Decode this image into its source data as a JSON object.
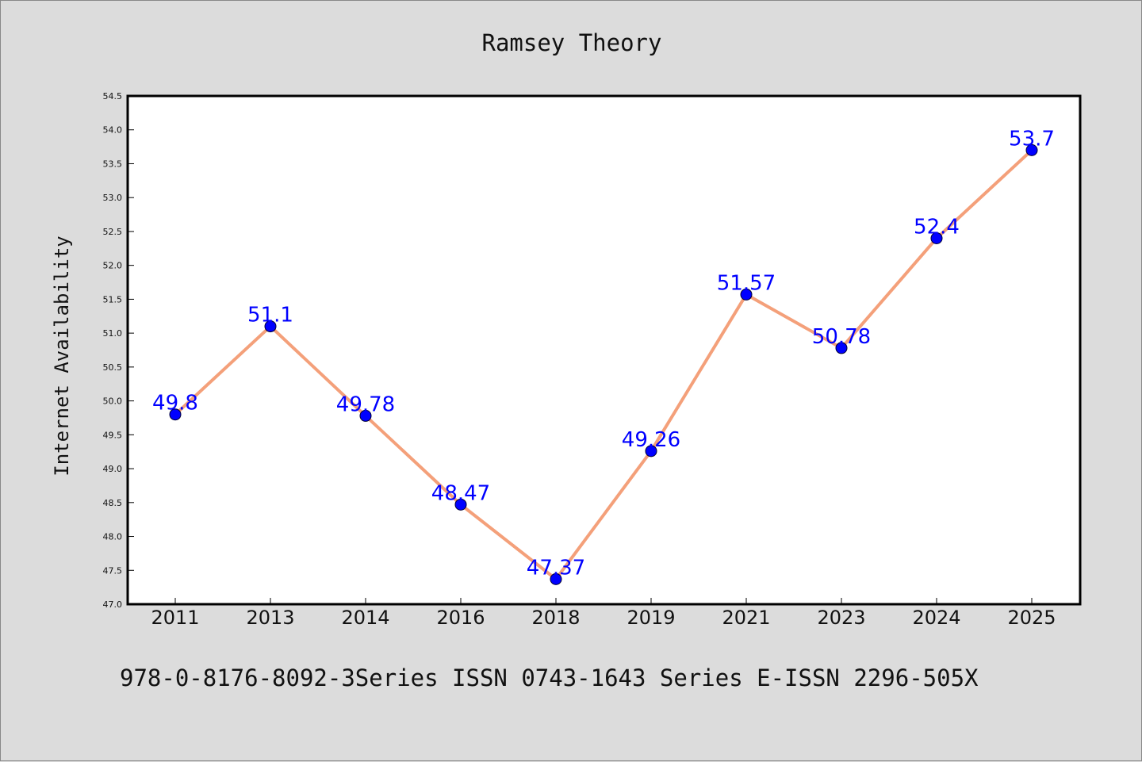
{
  "footer_text": "978-0-8176-8092-3Series ISSN 0743-1643 Series E-ISSN 2296-505X",
  "chart_data": {
    "type": "line",
    "title": "Ramsey Theory",
    "xlabel": "",
    "ylabel": "Internet Availability",
    "categories": [
      "2011",
      "2013",
      "2014",
      "2016",
      "2018",
      "2019",
      "2021",
      "2023",
      "2024",
      "2025"
    ],
    "series": [
      {
        "values": [
          49.8,
          51.1,
          49.78,
          48.47,
          47.37,
          49.26,
          51.57,
          50.78,
          52.4,
          53.7
        ],
        "data_labels": [
          "49.8",
          "51.1",
          "49.78",
          "48.47",
          "47.37",
          "49.26",
          "51.57",
          "50.78",
          "52.4",
          "53.7"
        ]
      }
    ],
    "ylim": [
      47.0,
      54.5
    ],
    "yticks": [
      "47.0",
      "47.5",
      "48.0",
      "48.5",
      "49.0",
      "49.5",
      "50.0",
      "50.5",
      "51.0",
      "51.5",
      "52.0",
      "52.5",
      "53.0",
      "53.5",
      "54.0",
      "54.5"
    ],
    "grid": false,
    "legend": "none",
    "colors": {
      "line": "#f4a07a",
      "marker": "#0000ff",
      "data_label": "#0000ff",
      "plot_background": "#ffffff",
      "figure_background": "#dcdcdc"
    }
  }
}
